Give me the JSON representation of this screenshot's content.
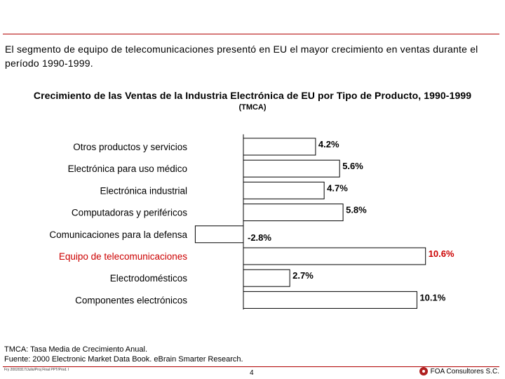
{
  "slide": {
    "headline": "El segmento de equipo de telecomunicaciones presentó en EU el mayor crecimiento en ventas durante el período 1990-1999.",
    "notes": [
      "TMCA: Tasa Media de Crecimiento Anual.",
      "Fuente: 2000 Electronic Market Data Book. eBrain Smarter Research."
    ],
    "file_ref": "Fry 20020317/Julio/Proj Final PPT/Prod. I",
    "page_number": "4",
    "brand": "FOA Consultores S.C.",
    "brand_logo_icon": "foa-logo-icon"
  },
  "chart_data": {
    "type": "bar",
    "orientation": "horizontal",
    "title": "Crecimiento de las Ventas de la Industria Electrónica de EU por Tipo de Producto, 1990-1999",
    "subtitle": "(TMCA)",
    "xlabel": "",
    "ylabel": "",
    "xlim": [
      -2.8,
      10.6
    ],
    "grid": false,
    "legend": "none",
    "categories": [
      "Otros productos y servicios",
      "Electrónica para uso médico",
      "Electrónica industrial",
      "Computadoras y periféricos",
      "Comunicaciones para la defensa",
      "Equipo de telecomunicaciones",
      "Electrodomésticos",
      "Componentes electrónicos"
    ],
    "values": [
      4.2,
      5.6,
      4.7,
      5.8,
      -2.8,
      10.6,
      2.7,
      10.1
    ],
    "value_labels": [
      "4.2%",
      "5.6%",
      "4.7%",
      "5.8%",
      "-2.8%",
      "10.6%",
      "2.7%",
      "10.1%"
    ],
    "highlight_index": 5,
    "colors": {
      "bar": "#ffffff",
      "bar_stroke": "#000000",
      "axis": "#000000",
      "highlight_label": "#cc0000",
      "default_label": "#000000"
    }
  }
}
